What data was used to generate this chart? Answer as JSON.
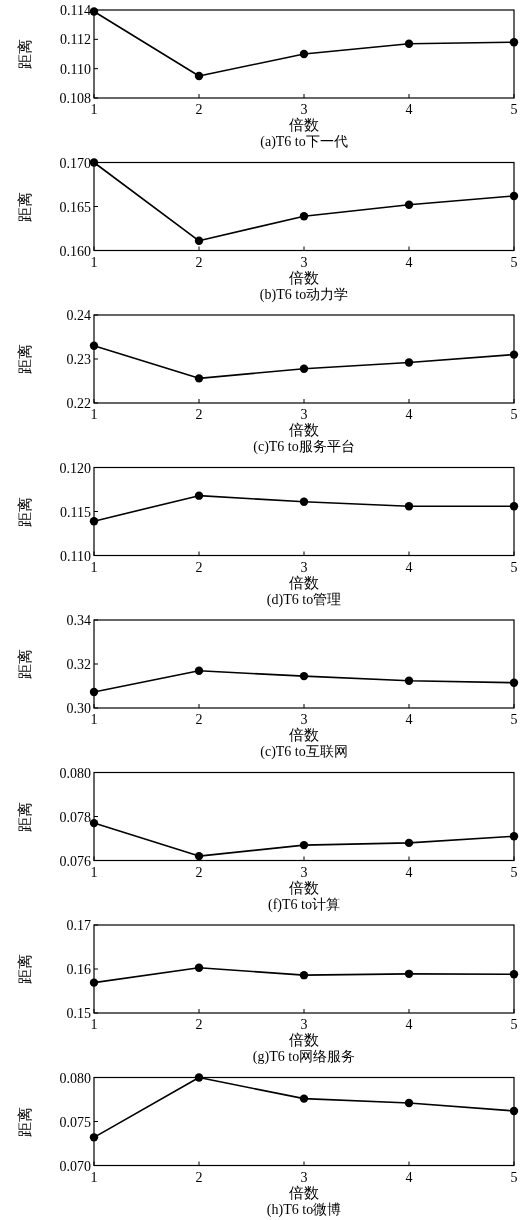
{
  "chart_data": [
    {
      "type": "line",
      "title": "(a)T6 to下一代",
      "xlabel": "倍数",
      "ylabel": "距离",
      "marker": "circle",
      "line_style": "solid",
      "x": [
        1,
        2,
        3,
        4,
        5
      ],
      "xlim": [
        1,
        5
      ],
      "xticks": [
        1,
        2,
        3,
        4,
        5
      ],
      "ylim": [
        0.108,
        0.114
      ],
      "yticks": [
        {
          "value": 0.108,
          "label": "0.108"
        },
        {
          "value": 0.11,
          "label": "0.110"
        },
        {
          "value": 0.112,
          "label": "0.112"
        },
        {
          "value": 0.114,
          "label": "0.114"
        }
      ],
      "series": [
        {
          "color": "#000000",
          "values": [
            0.1139,
            0.1095,
            0.111,
            0.1117,
            0.1118
          ]
        }
      ]
    },
    {
      "type": "line",
      "title": "(b)T6 to动力学",
      "xlabel": "倍数",
      "ylabel": "距离",
      "marker": "circle",
      "line_style": "solid",
      "x": [
        1,
        2,
        3,
        4,
        5
      ],
      "xlim": [
        1,
        5
      ],
      "xticks": [
        1,
        2,
        3,
        4,
        5
      ],
      "ylim": [
        0.16,
        0.17
      ],
      "yticks": [
        {
          "value": 0.16,
          "label": "0.160"
        },
        {
          "value": 0.165,
          "label": "0.165"
        },
        {
          "value": 0.17,
          "label": "0.170"
        }
      ],
      "series": [
        {
          "color": "#000000",
          "values": [
            0.17,
            0.1611,
            0.1639,
            0.1652,
            0.1662
          ]
        }
      ]
    },
    {
      "type": "line",
      "title": "(c)T6 to服务平台",
      "xlabel": "倍数",
      "ylabel": "距离",
      "marker": "circle",
      "line_style": "solid",
      "x": [
        1,
        2,
        3,
        4,
        5
      ],
      "xlim": [
        1,
        5
      ],
      "xticks": [
        1,
        2,
        3,
        4,
        5
      ],
      "ylim": [
        0.22,
        0.24
      ],
      "yticks": [
        {
          "value": 0.22,
          "label": "0.22"
        },
        {
          "value": 0.23,
          "label": "0.23"
        },
        {
          "value": 0.24,
          "label": "0.24"
        }
      ],
      "series": [
        {
          "color": "#000000",
          "values": [
            0.233,
            0.2256,
            0.2278,
            0.2292,
            0.231
          ]
        }
      ]
    },
    {
      "type": "line",
      "title": "(d)T6 to管理",
      "xlabel": "倍数",
      "ylabel": "距离",
      "marker": "circle",
      "line_style": "solid",
      "x": [
        1,
        2,
        3,
        4,
        5
      ],
      "xlim": [
        1,
        5
      ],
      "xticks": [
        1,
        2,
        3,
        4,
        5
      ],
      "ylim": [
        0.11,
        0.12
      ],
      "yticks": [
        {
          "value": 0.11,
          "label": "0.110"
        },
        {
          "value": 0.115,
          "label": "0.115"
        },
        {
          "value": 0.12,
          "label": "0.120"
        }
      ],
      "series": [
        {
          "color": "#000000",
          "values": [
            0.1139,
            0.1168,
            0.1161,
            0.1156,
            0.1156
          ]
        }
      ]
    },
    {
      "type": "line",
      "title": "(c)T6 to互联网",
      "xlabel": "倍数",
      "ylabel": "距离",
      "marker": "circle",
      "line_style": "solid",
      "x": [
        1,
        2,
        3,
        4,
        5
      ],
      "xlim": [
        1,
        5
      ],
      "xticks": [
        1,
        2,
        3,
        4,
        5
      ],
      "ylim": [
        0.3,
        0.34
      ],
      "yticks": [
        {
          "value": 0.3,
          "label": "0.30"
        },
        {
          "value": 0.32,
          "label": "0.32"
        },
        {
          "value": 0.34,
          "label": "0.34"
        }
      ],
      "series": [
        {
          "color": "#000000",
          "values": [
            0.3073,
            0.3169,
            0.3145,
            0.3124,
            0.3115
          ]
        }
      ]
    },
    {
      "type": "line",
      "title": "(f)T6 to计算",
      "xlabel": "倍数",
      "ylabel": "距离",
      "marker": "circle",
      "line_style": "solid",
      "x": [
        1,
        2,
        3,
        4,
        5
      ],
      "xlim": [
        1,
        5
      ],
      "xticks": [
        1,
        2,
        3,
        4,
        5
      ],
      "ylim": [
        0.076,
        0.08
      ],
      "yticks": [
        {
          "value": 0.076,
          "label": "0.076"
        },
        {
          "value": 0.078,
          "label": "0.078"
        },
        {
          "value": 0.08,
          "label": "0.080"
        }
      ],
      "series": [
        {
          "color": "#000000",
          "values": [
            0.0777,
            0.0762,
            0.0767,
            0.0768,
            0.0771
          ]
        }
      ]
    },
    {
      "type": "line",
      "title": "(g)T6 to网络服务",
      "xlabel": "倍数",
      "ylabel": "距离",
      "marker": "circle",
      "line_style": "solid",
      "x": [
        1,
        2,
        3,
        4,
        5
      ],
      "xlim": [
        1,
        5
      ],
      "xticks": [
        1,
        2,
        3,
        4,
        5
      ],
      "ylim": [
        0.15,
        0.17
      ],
      "yticks": [
        {
          "value": 0.15,
          "label": "0.15"
        },
        {
          "value": 0.16,
          "label": "0.16"
        },
        {
          "value": 0.17,
          "label": "0.17"
        }
      ],
      "series": [
        {
          "color": "#000000",
          "values": [
            0.1569,
            0.1603,
            0.1586,
            0.1589,
            0.1588
          ]
        }
      ]
    },
    {
      "type": "line",
      "title": "(h)T6 to微博",
      "xlabel": "倍数",
      "ylabel": "距离",
      "marker": "circle",
      "line_style": "solid",
      "x": [
        1,
        2,
        3,
        4,
        5
      ],
      "xlim": [
        1,
        5
      ],
      "xticks": [
        1,
        2,
        3,
        4,
        5
      ],
      "ylim": [
        0.07,
        0.08
      ],
      "yticks": [
        {
          "value": 0.07,
          "label": "0.070"
        },
        {
          "value": 0.075,
          "label": "0.075"
        },
        {
          "value": 0.08,
          "label": "0.080"
        }
      ],
      "series": [
        {
          "color": "#000000",
          "values": [
            0.0732,
            0.08,
            0.0776,
            0.0771,
            0.0762
          ]
        }
      ]
    }
  ]
}
